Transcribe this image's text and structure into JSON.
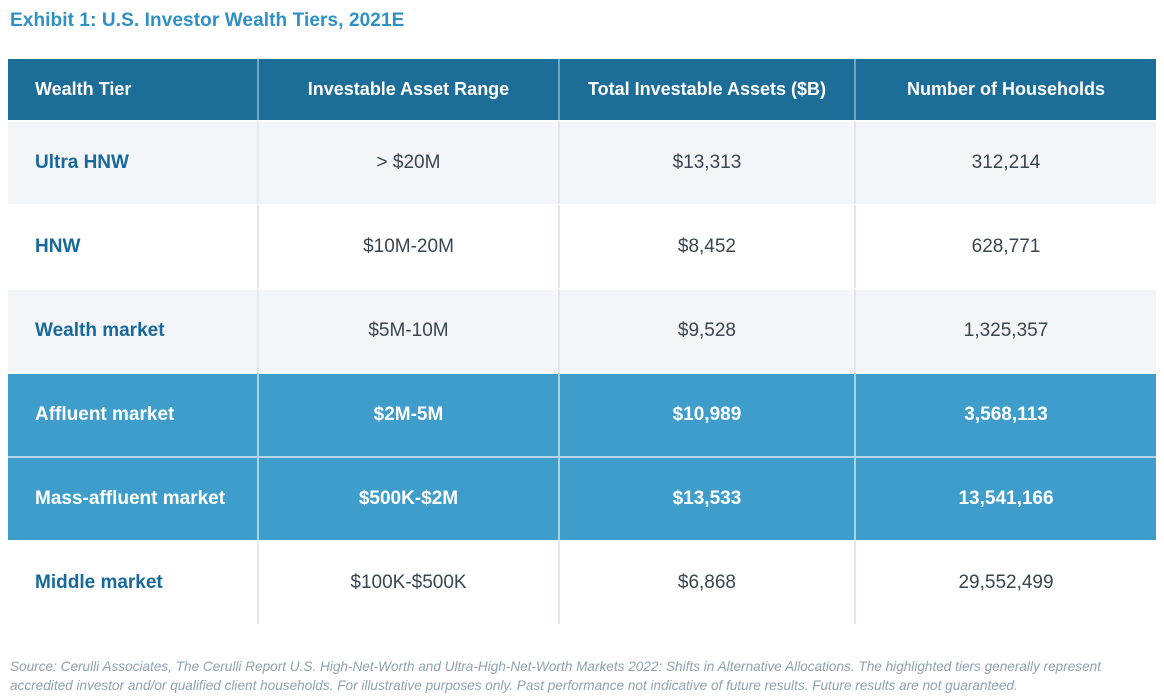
{
  "title": "Exhibit 1: U.S. Investor Wealth Tiers, 2021E",
  "table": {
    "columns": [
      "Wealth Tier",
      "Investable Asset Range",
      "Total Investable Assets ($B)",
      "Number of Households"
    ],
    "rows": [
      {
        "tier": "Ultra HNW",
        "range": "> $20M",
        "assets": "$13,313",
        "households": "312,214",
        "highlighted": false
      },
      {
        "tier": "HNW",
        "range": "$10M-20M",
        "assets": "$8,452",
        "households": "628,771",
        "highlighted": false
      },
      {
        "tier": "Wealth market",
        "range": "$5M-10M",
        "assets": "$9,528",
        "households": "1,325,357",
        "highlighted": false
      },
      {
        "tier": "Affluent market",
        "range": "$2M-5M",
        "assets": "$10,989",
        "households": "3,568,113",
        "highlighted": true
      },
      {
        "tier": "Mass-affluent market",
        "range": "$500K-$2M",
        "assets": "$13,533",
        "households": "13,541,166",
        "highlighted": true
      },
      {
        "tier": "Middle market",
        "range": "$100K-$500K",
        "assets": "$6,868",
        "households": "29,552,499",
        "highlighted": false
      }
    ]
  },
  "footer": {
    "source_text": "Source: Cerulli Associates, The Cerulli Report U.S. High-Net-Worth and Ultra-High-Net-Worth Markets 2022: Shifts in Alternative Allocations. The highlighted tiers generally represent accredited investor and/or qualified client households. For illustrative purposes only. Past performance not indicative of future results. Future results are not guaranteed."
  },
  "colors": {
    "title_blue": "#2F90C5",
    "header_bg": "#1D6D99",
    "highlight_row_bg": "#3E9DCA",
    "tier_label_blue": "#17699B",
    "data_text": "#39454F",
    "alt_row_bg": "#F4F5F8",
    "footer_gray": "#8FA2AF"
  }
}
